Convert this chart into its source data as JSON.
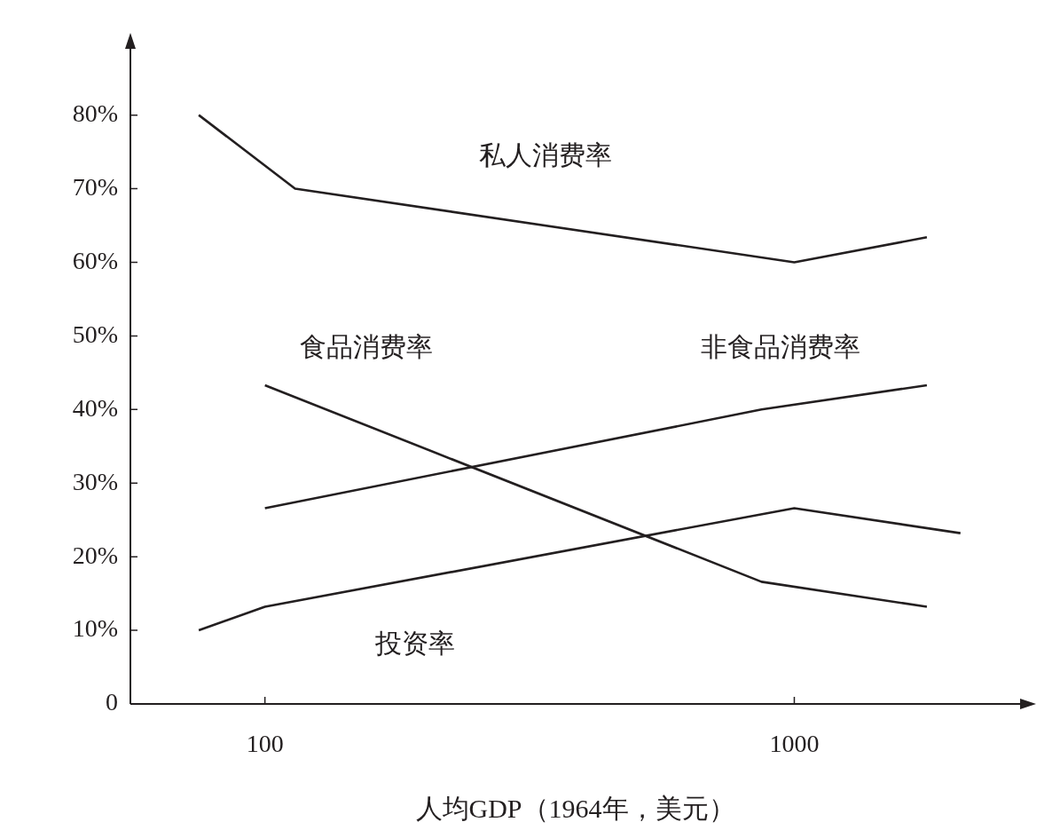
{
  "chart_data": {
    "type": "line",
    "xlabel": "人均GDP（1964年，美元）",
    "log": "x",
    "xlim": [
      55.7,
      2670
    ],
    "xticks": [
      100,
      1000
    ],
    "ylim": [
      0,
      89
    ],
    "yticks": [
      {
        "value": 0,
        "label": "0"
      },
      {
        "value": 10,
        "label": "10%"
      },
      {
        "value": 20,
        "label": "20%"
      },
      {
        "value": 30,
        "label": "30%"
      },
      {
        "value": 40,
        "label": "40%"
      },
      {
        "value": 50,
        "label": "50%"
      },
      {
        "value": 60,
        "label": "60%"
      },
      {
        "value": 70,
        "label": "70%"
      },
      {
        "value": 80,
        "label": "80%"
      }
    ],
    "grid": false,
    "legend": false,
    "marker": "none",
    "line_style": "solid",
    "series": [
      {
        "name": "私人消费率",
        "color": "#231f20",
        "x": [
          75,
          114,
          1000,
          1780
        ],
        "values": [
          80,
          70,
          60,
          63.4
        ]
      },
      {
        "name": "食品消费率",
        "color": "#231f20",
        "x": [
          100,
          867,
          1780
        ],
        "values": [
          43.3,
          16.6,
          13.2
        ]
      },
      {
        "name": "非食品消费率",
        "color": "#231f20",
        "x": [
          100,
          867,
          1780
        ],
        "values": [
          26.6,
          40,
          43.3
        ]
      },
      {
        "name": "投资率",
        "color": "#231f20",
        "x": [
          75,
          100,
          1000,
          2060
        ],
        "values": [
          10,
          13.2,
          26.6,
          23.2
        ]
      }
    ]
  }
}
